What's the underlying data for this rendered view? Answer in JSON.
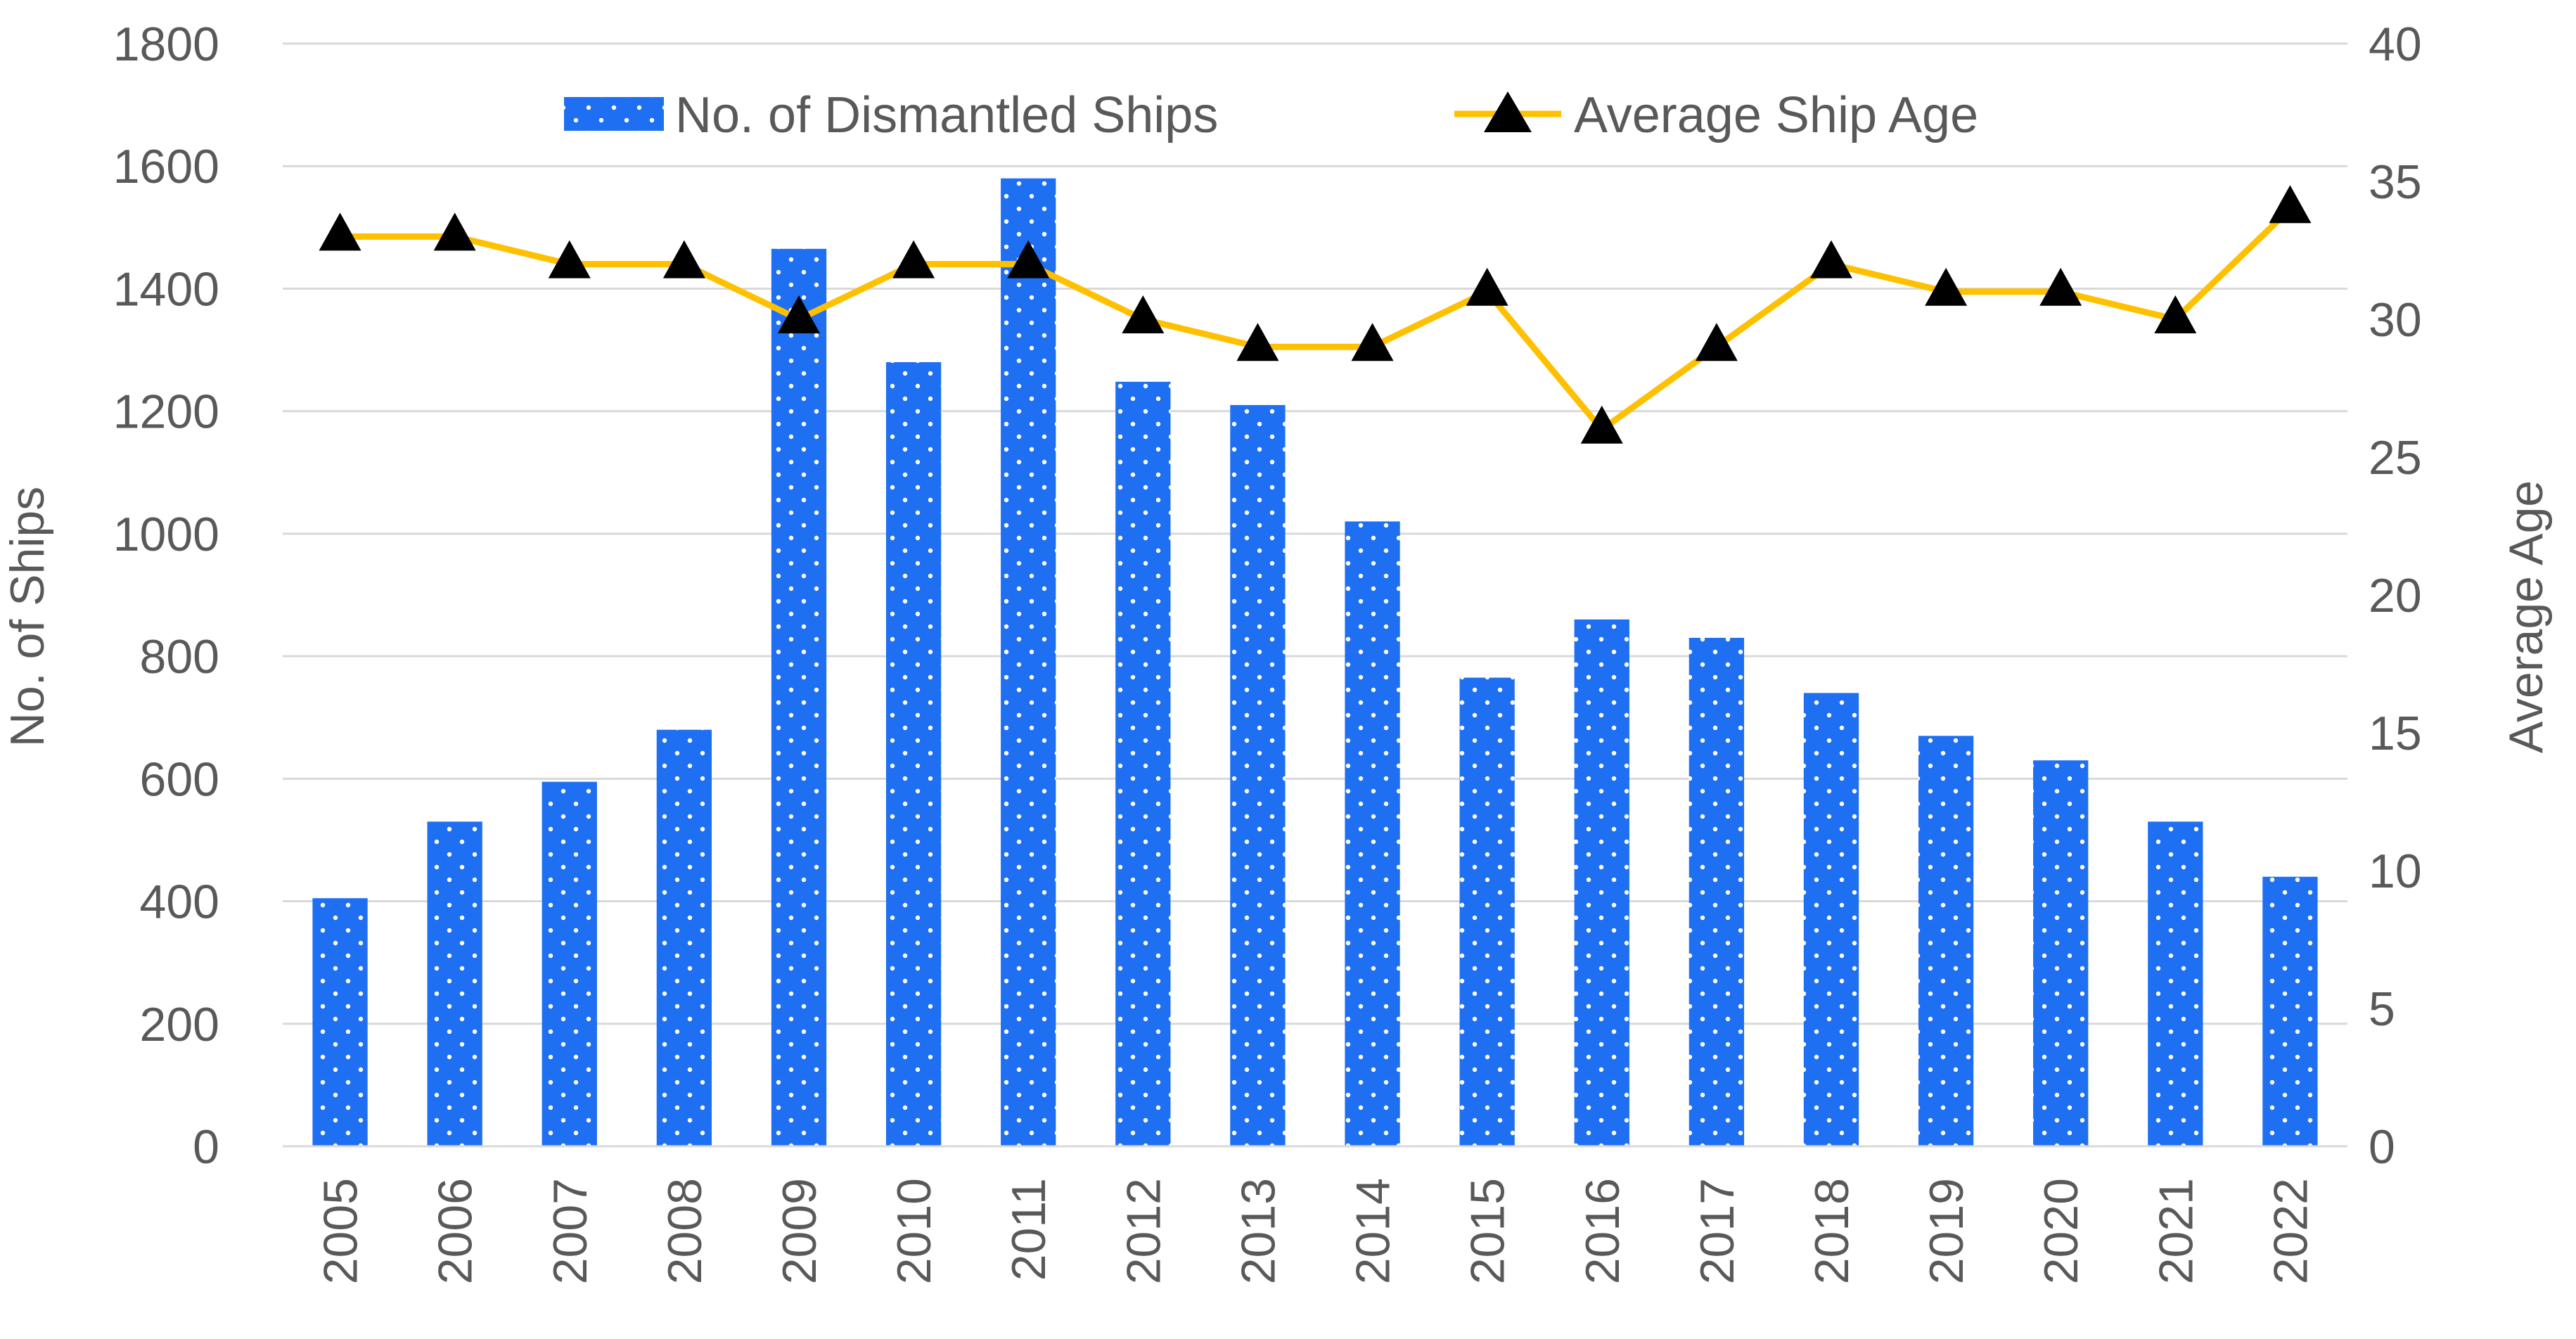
{
  "chart_data": {
    "type": "bar",
    "title": "",
    "categories": [
      "2005",
      "2006",
      "2007",
      "2008",
      "2009",
      "2010",
      "2011",
      "2012",
      "2013",
      "2014",
      "2015",
      "2016",
      "2017",
      "2018",
      "2019",
      "2020",
      "2021",
      "2022"
    ],
    "series": [
      {
        "name": "No. of Dismantled Ships",
        "type": "bar",
        "axis": "left",
        "color": "#1F6FF2",
        "pattern": "white-dots",
        "values": [
          405,
          530,
          595,
          680,
          1465,
          1280,
          1580,
          1248,
          1210,
          1020,
          765,
          860,
          830,
          740,
          670,
          630,
          530,
          440
        ]
      },
      {
        "name": "Average Ship Age",
        "type": "line",
        "axis": "right",
        "color": "#FFC000",
        "marker": "triangle",
        "marker_color": "#000000",
        "values": [
          33,
          33,
          32,
          32,
          30,
          32,
          32,
          30,
          29,
          29,
          31,
          26,
          29,
          32,
          31,
          31,
          30,
          34
        ]
      }
    ],
    "xlabel": "",
    "ylabel": "No. of Ships",
    "y2label": "Average Age",
    "ylim": [
      0,
      1800
    ],
    "y2lim": [
      0,
      40
    ],
    "yticks": [
      "0",
      "200",
      "400",
      "600",
      "800",
      "1000",
      "1200",
      "1400",
      "1600",
      "1800"
    ],
    "y2ticks": [
      "0",
      "5",
      "10",
      "15",
      "20",
      "25",
      "30",
      "35",
      "40"
    ],
    "grid": true,
    "legend_position": "top-center"
  },
  "colors": {
    "bar": "#1F6FF2",
    "line": "#FFC000",
    "marker": "#000000",
    "grid": "#D9D9D9",
    "text": "#595959"
  }
}
